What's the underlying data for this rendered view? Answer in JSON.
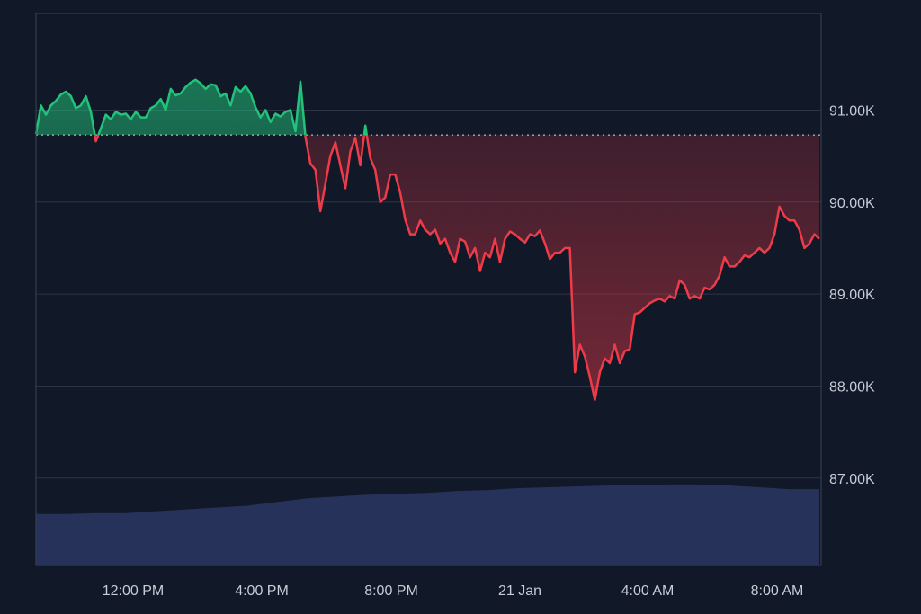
{
  "chart_data": {
    "type": "line",
    "x_labels": [
      "12:00 PM",
      "4:00 PM",
      "8:00 PM",
      "21 Jan",
      "4:00 AM",
      "8:00 AM"
    ],
    "y_ticks": [
      {
        "value": 87000,
        "label": "87.00K"
      },
      {
        "value": 88000,
        "label": "88.00K"
      },
      {
        "value": 89000,
        "label": "89.00K"
      },
      {
        "value": 90000,
        "label": "90.00K"
      },
      {
        "value": 91000,
        "label": "91.00K"
      }
    ],
    "ylim": [
      86050,
      92050
    ],
    "baseline_price": 90730,
    "grid": true,
    "colors": {
      "up": "#22c27a",
      "down": "#ef3b49",
      "volume": "#27325a",
      "background": "#111827"
    },
    "price_series": [
      90740,
      91050,
      90950,
      91050,
      91100,
      91170,
      91200,
      91150,
      91020,
      91050,
      91150,
      90980,
      90660,
      90800,
      90950,
      90900,
      90980,
      90950,
      90960,
      90900,
      90980,
      90920,
      90920,
      91020,
      91050,
      91120,
      91000,
      91230,
      91160,
      91180,
      91250,
      91300,
      91330,
      91290,
      91230,
      91280,
      91270,
      91150,
      91180,
      91050,
      91250,
      91200,
      91260,
      91180,
      91030,
      90920,
      91000,
      90870,
      90960,
      90930,
      90980,
      91000,
      90770,
      91310,
      90710,
      90420,
      90350,
      89900,
      90200,
      90500,
      90650,
      90400,
      90150,
      90550,
      90700,
      90400,
      90830,
      90480,
      90350,
      90000,
      90050,
      90300,
      90300,
      90100,
      89810,
      89650,
      89650,
      89800,
      89700,
      89650,
      89700,
      89550,
      89600,
      89450,
      89350,
      89600,
      89570,
      89400,
      89500,
      89250,
      89450,
      89400,
      89600,
      89350,
      89600,
      89680,
      89650,
      89600,
      89560,
      89650,
      89630,
      89690,
      89550,
      89380,
      89450,
      89450,
      89500,
      89500,
      88150,
      88450,
      88320,
      88100,
      87850,
      88150,
      88300,
      88250,
      88450,
      88250,
      88380,
      88400,
      88780,
      88800,
      88850,
      88900,
      88930,
      88950,
      88920,
      88980,
      88950,
      89150,
      89100,
      88950,
      88980,
      88950,
      89070,
      89050,
      89100,
      89200,
      89400,
      89300,
      89300,
      89350,
      89420,
      89400,
      89450,
      89500,
      89450,
      89500,
      89650,
      89950,
      89850,
      89800,
      89800,
      89700,
      89500,
      89550,
      89650,
      89600
    ],
    "volume_series": [
      86610,
      86610,
      86620,
      86620,
      86640,
      86660,
      86680,
      86700,
      86740,
      86780,
      86800,
      86820,
      86830,
      86840,
      86860,
      86870,
      86890,
      86900,
      86910,
      86920,
      86920,
      86930,
      86930,
      86920,
      86900,
      86880,
      86880
    ]
  }
}
